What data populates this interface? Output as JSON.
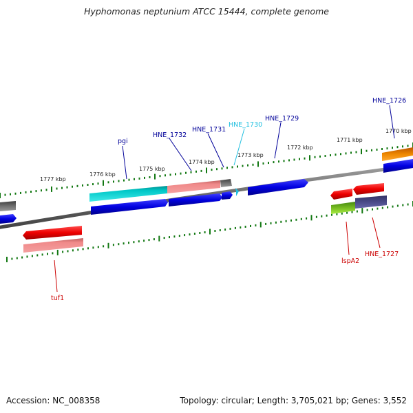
{
  "title": "Hyphomonas neptunium ATCC 15444, complete genome",
  "footer": {
    "accession": "Accession: NC_008358",
    "topology": "Topology: circular; Length: 3,705,021 bp; Genes: 3,552"
  },
  "colors": {
    "cds_blue": "#0000e0",
    "cds_red": "#ee0000",
    "cds_pink": "#f08080",
    "cds_cyan": "#00c8c8",
    "cds_gray": "#606060",
    "cds_green": "#66bb22",
    "cds_purple": "#444488",
    "cds_orange": "#ee8800",
    "tick_green": "#117711",
    "label_blue": "#000099",
    "label_cyan": "#22c0e0",
    "label_red": "#cc0000"
  },
  "scale_labels": [
    "1777 kbp",
    "1776 kbp",
    "1775 kbp",
    "1774 kbp",
    "1773 kbp",
    "1772 kbp",
    "1771 kbp",
    "1770 kbp"
  ],
  "gene_labels": {
    "pgi": "pgi",
    "hne1732": "HNE_1732",
    "hne1731": "HNE_1731",
    "hne1730": "HNE_1730",
    "hne1729": "HNE_1729",
    "hne1726": "HNE_1726",
    "tuf1": "tuf1",
    "lspa2": "lspA2",
    "hne1727": "HNE_1727"
  }
}
